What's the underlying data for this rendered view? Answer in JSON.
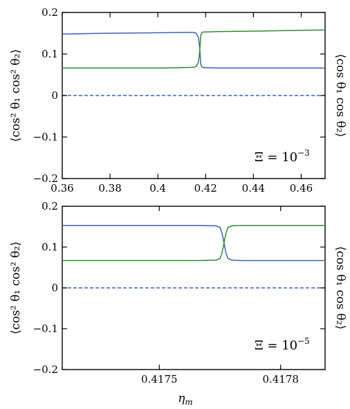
{
  "chart_data": [
    {
      "type": "line",
      "title": "",
      "ylabel_left": "⟨cos² θ₁ cos² θ₂⟩",
      "ylabel_right": "⟨cos θ₁ cos θ₂⟩",
      "annotation": {
        "base": "Ξ = 10",
        "exponent": "−3"
      },
      "xlim": [
        0.36,
        0.47
      ],
      "ylim": [
        -0.2,
        0.2
      ],
      "xticks": [
        {
          "value": 0.36,
          "label": "0.36"
        },
        {
          "value": 0.38,
          "label": "0.38"
        },
        {
          "value": 0.4,
          "label": "0.4"
        },
        {
          "value": 0.42,
          "label": "0.42"
        },
        {
          "value": 0.44,
          "label": "0.44"
        },
        {
          "value": 0.46,
          "label": "0.46"
        }
      ],
      "yticks": [
        {
          "value": -0.2,
          "label": "−0.2"
        },
        {
          "value": -0.1,
          "label": "−0.1"
        },
        {
          "value": 0.0,
          "label": "0"
        },
        {
          "value": 0.1,
          "label": "0.1"
        },
        {
          "value": 0.2,
          "label": "0.2"
        }
      ],
      "series": [
        {
          "color": "#3a5fc0",
          "style": "solid",
          "x": [
            0.36,
            0.38,
            0.4,
            0.41,
            0.415,
            0.416,
            0.417,
            0.4175,
            0.4178,
            0.418,
            0.4185,
            0.419,
            0.42,
            0.425,
            0.44,
            0.47
          ],
          "y": [
            0.148,
            0.15,
            0.151,
            0.152,
            0.152,
            0.15,
            0.14,
            0.115,
            0.09,
            0.075,
            0.068,
            0.067,
            0.067,
            0.066,
            0.066,
            0.066
          ]
        },
        {
          "color": "#2e8b2e",
          "style": "solid",
          "x": [
            0.36,
            0.38,
            0.4,
            0.41,
            0.415,
            0.416,
            0.417,
            0.4175,
            0.4178,
            0.418,
            0.4185,
            0.419,
            0.42,
            0.425,
            0.44,
            0.47
          ],
          "y": [
            0.066,
            0.066,
            0.066,
            0.067,
            0.068,
            0.07,
            0.08,
            0.105,
            0.13,
            0.145,
            0.152,
            0.153,
            0.153,
            0.154,
            0.155,
            0.158
          ]
        },
        {
          "color": "#3a5fc0",
          "style": "dashed",
          "x": [
            0.36,
            0.47
          ],
          "y": [
            0.0,
            0.0
          ]
        }
      ]
    },
    {
      "type": "line",
      "title": "",
      "ylabel_left": "⟨cos² θ₁ cos² θ₂⟩",
      "ylabel_right": "⟨cos θ₁ cos θ₂⟩",
      "xlabel": "η",
      "xlabel_sub": "m",
      "annotation": {
        "base": "Ξ = 10",
        "exponent": "−5"
      },
      "xlim": [
        0.41726,
        0.41791
      ],
      "ylim": [
        -0.2,
        0.2
      ],
      "xticks": [
        {
          "value": 0.4175,
          "label": "0.4175"
        },
        {
          "value": 0.4178,
          "label": "0.4178"
        }
      ],
      "yticks": [
        {
          "value": -0.2,
          "label": "−0.2"
        },
        {
          "value": -0.1,
          "label": "−0.1"
        },
        {
          "value": 0.0,
          "label": "0"
        },
        {
          "value": 0.1,
          "label": "0.1"
        },
        {
          "value": 0.2,
          "label": "0.2"
        }
      ],
      "series": [
        {
          "color": "#3a5fc0",
          "style": "solid",
          "x": [
            0.41726,
            0.4174,
            0.4176,
            0.41764,
            0.41765,
            0.417655,
            0.41766,
            0.417665,
            0.41767,
            0.41768,
            0.4177,
            0.4178,
            0.41791
          ],
          "y": [
            0.153,
            0.153,
            0.153,
            0.152,
            0.148,
            0.135,
            0.11,
            0.085,
            0.072,
            0.068,
            0.067,
            0.067,
            0.067
          ]
        },
        {
          "color": "#2e8b2e",
          "style": "solid",
          "x": [
            0.41726,
            0.4174,
            0.4176,
            0.41764,
            0.41765,
            0.417655,
            0.41766,
            0.417665,
            0.41767,
            0.41768,
            0.4177,
            0.4178,
            0.41791
          ],
          "y": [
            0.067,
            0.067,
            0.067,
            0.068,
            0.072,
            0.085,
            0.11,
            0.135,
            0.148,
            0.152,
            0.153,
            0.153,
            0.153
          ]
        },
        {
          "color": "#3a5fc0",
          "style": "dashed",
          "x": [
            0.41726,
            0.41791
          ],
          "y": [
            0.0,
            0.0
          ]
        }
      ]
    }
  ]
}
